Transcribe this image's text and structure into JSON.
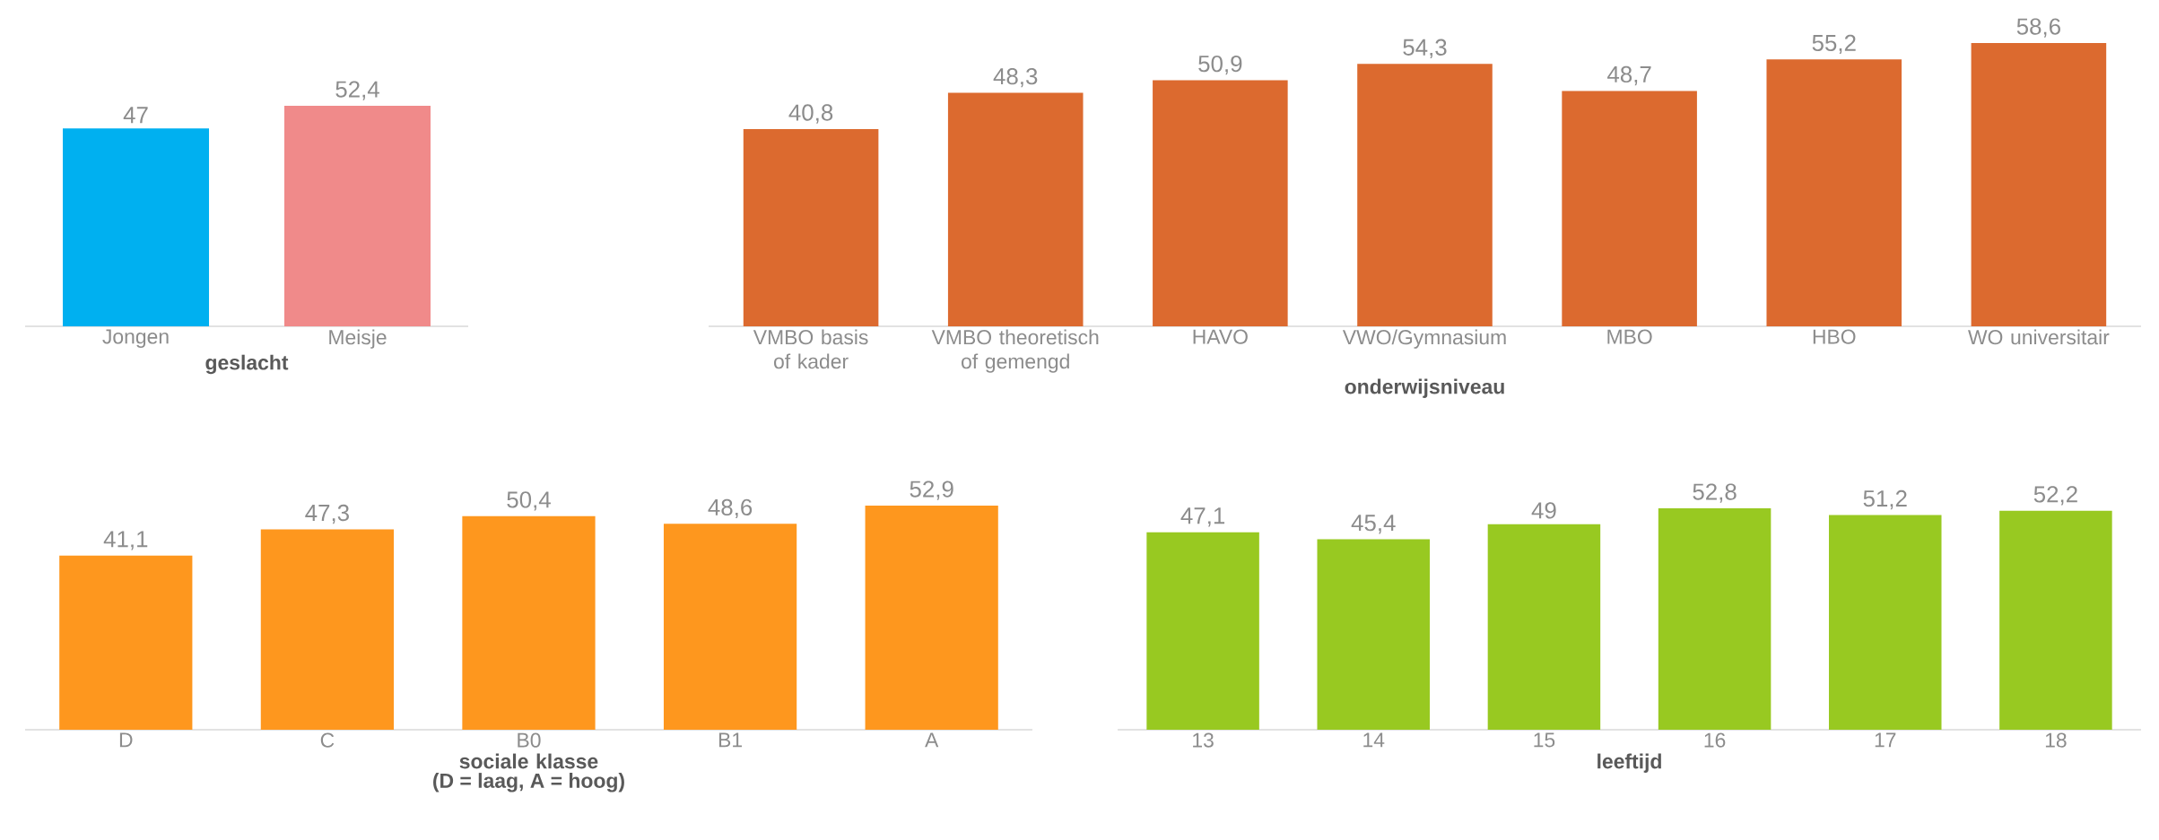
{
  "chart_data": [
    {
      "type": "bar",
      "xlabel": "geslacht",
      "categories": [
        "Jongen",
        "Meisje"
      ],
      "values": [
        47,
        52.4
      ],
      "value_labels": [
        "47",
        "52,4"
      ],
      "colors": [
        "#00b0f0",
        "#f08a8a"
      ]
    },
    {
      "type": "bar",
      "xlabel": "onderwijsniveau",
      "categories": [
        "VMBO basis of kader",
        "VMBO theoretisch of gemengd",
        "HAVO",
        "VWO/Gymnasium",
        "MBO",
        "HBO",
        "WO universitair"
      ],
      "values": [
        40.8,
        48.3,
        50.9,
        54.3,
        48.7,
        55.2,
        58.6
      ],
      "value_labels": [
        "40,8",
        "48,3",
        "50,9",
        "54,3",
        "48,7",
        "55,2",
        "58,6"
      ],
      "color": "#dc6a2f"
    },
    {
      "type": "bar",
      "xlabel": "sociale klasse",
      "annotations": [
        "(D = laag, A = hoog)"
      ],
      "categories": [
        "D",
        "C",
        "B0",
        "B1",
        "A"
      ],
      "values": [
        41.1,
        47.3,
        50.4,
        48.6,
        52.9
      ],
      "value_labels": [
        "41,1",
        "47,3",
        "50,4",
        "48,6",
        "52,9"
      ],
      "color": "#fe971e"
    },
    {
      "type": "bar",
      "xlabel": "leeftijd",
      "categories": [
        "13",
        "14",
        "15",
        "16",
        "17",
        "18"
      ],
      "values": [
        47.1,
        45.4,
        49,
        52.8,
        51.2,
        52.2
      ],
      "value_labels": [
        "47,1",
        "45,4",
        "49",
        "52,8",
        "51,2",
        "52,2"
      ],
      "color": "#98c921"
    }
  ]
}
